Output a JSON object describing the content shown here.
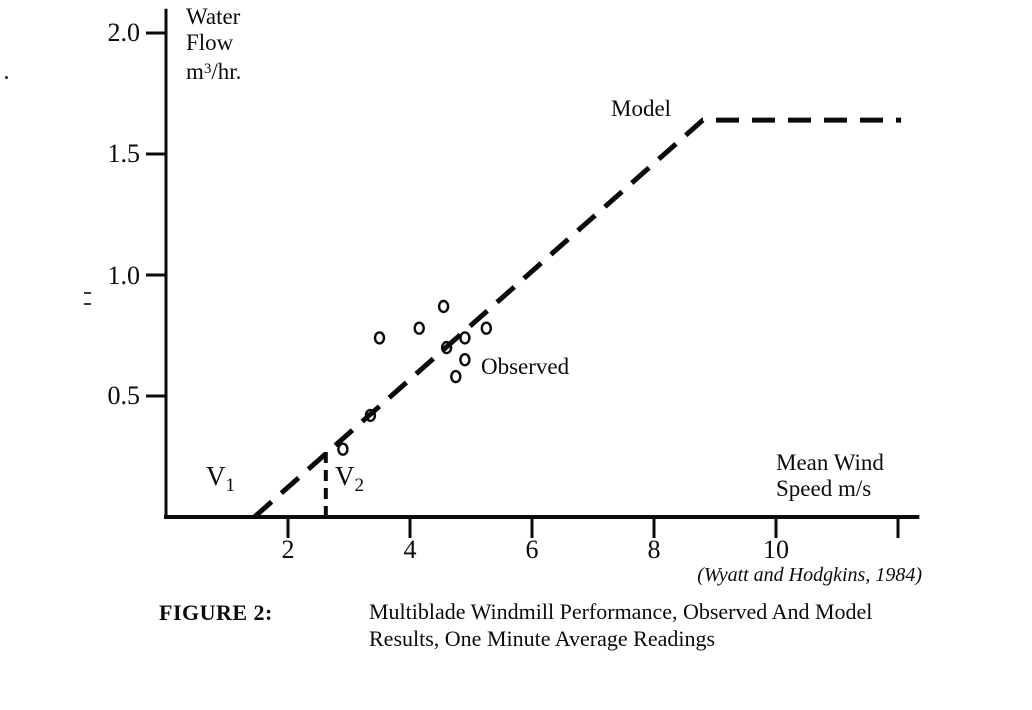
{
  "figure": {
    "y_axis_title": {
      "line1": "Water",
      "line2": "Flow",
      "unit_base": "m",
      "unit_sup": "3",
      "unit_rest": "/hr."
    },
    "x_axis_title": {
      "line1": "Mean Wind",
      "line2": "Speed m/s"
    },
    "model_label": "Model",
    "observed_label": "Observed",
    "v1": {
      "base": "V",
      "sub": "1"
    },
    "v2": {
      "base": "V",
      "sub": "2"
    },
    "citation": "(Wyatt and Hodgkins, 1984)",
    "caption": {
      "tag": "FIGURE 2:",
      "line1": "Multiblade Windmill Performance, Observed And Model",
      "line2": "Results, One Minute Average Readings"
    }
  },
  "chart_data": {
    "type": "scatter",
    "title": "Multiblade Windmill Performance, Observed And Model Results, One Minute Average Readings",
    "xlabel": "Mean Wind Speed m/s",
    "ylabel": "Water Flow m3/hr.",
    "xlim": [
      0,
      12.35
    ],
    "ylim": [
      0,
      2.1
    ],
    "grid": false,
    "legend": "inline-annotations",
    "ink_color": "#0b0b0b",
    "x_ticks": [
      {
        "v": 2,
        "label": "2"
      },
      {
        "v": 4,
        "label": "4"
      },
      {
        "v": 6,
        "label": "6"
      },
      {
        "v": 8,
        "label": "8"
      },
      {
        "v": 10,
        "label": "10"
      },
      {
        "v": 12,
        "label": ""
      }
    ],
    "y_ticks": [
      {
        "v": 2.0,
        "label": "2.0"
      },
      {
        "v": 1.5,
        "label": "1.5"
      },
      {
        "v": 1.0,
        "label": "1.0"
      },
      {
        "v": 0.5,
        "label": "0.5"
      }
    ],
    "series": [
      {
        "name": "Observed",
        "type": "scatter",
        "marker": "open-circle",
        "points": [
          [
            3.5,
            0.74
          ],
          [
            4.15,
            0.78
          ],
          [
            4.55,
            0.87
          ],
          [
            4.6,
            0.7
          ],
          [
            4.9,
            0.74
          ],
          [
            5.25,
            0.78
          ],
          [
            4.9,
            0.65
          ],
          [
            4.75,
            0.58
          ],
          [
            3.35,
            0.42
          ],
          [
            2.9,
            0.28
          ]
        ]
      },
      {
        "name": "Model",
        "type": "line",
        "style": "dashed",
        "points": [
          [
            1.45,
            0
          ],
          [
            8.8,
            1.64
          ],
          [
            12.05,
            1.64
          ]
        ]
      }
    ],
    "annotations": [
      {
        "name": "V1",
        "text": "V1",
        "x": 1.45
      },
      {
        "name": "V2",
        "text": "V2",
        "x": 2.62,
        "guide": {
          "x": 2.62,
          "y_top": 0.285,
          "style": "dashed"
        }
      }
    ],
    "source": "(Wyatt and Hodgkins, 1984)"
  }
}
